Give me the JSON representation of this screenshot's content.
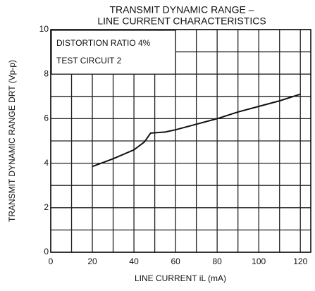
{
  "chart_data": {
    "type": "line",
    "title": [
      "TRANSMIT DYNAMIC RANGE  –",
      "LINE CURRENT CHARACTERISTICS"
    ],
    "x_label": "LINE CURRENT   iL   (mA)",
    "y_label": "TRANSMIT DYNAMIC RANGE   DRT   (Vp-p)",
    "annotations": [
      "DISTORTION RATIO  4%",
      "TEST CIRCUIT 2"
    ],
    "x": [
      20,
      30,
      40,
      45,
      48,
      55,
      60,
      70,
      80,
      90,
      100,
      110,
      120
    ],
    "series": [
      {
        "name": "DRT",
        "color": "#111111",
        "values": [
          3.85,
          4.2,
          4.6,
          4.95,
          5.35,
          5.4,
          5.5,
          5.75,
          6.0,
          6.3,
          6.55,
          6.8,
          7.1
        ]
      }
    ],
    "xlim": [
      0,
      125
    ],
    "xticks": [
      0,
      20,
      40,
      60,
      80,
      100,
      120
    ],
    "xgrid_minor": [
      10,
      30,
      50,
      70,
      90,
      110
    ],
    "ylim": [
      0,
      10
    ],
    "yticks": [
      0,
      2,
      4,
      6,
      8,
      10
    ],
    "ygrid_minor": [
      1,
      3,
      5,
      7,
      9
    ],
    "grid": true
  }
}
